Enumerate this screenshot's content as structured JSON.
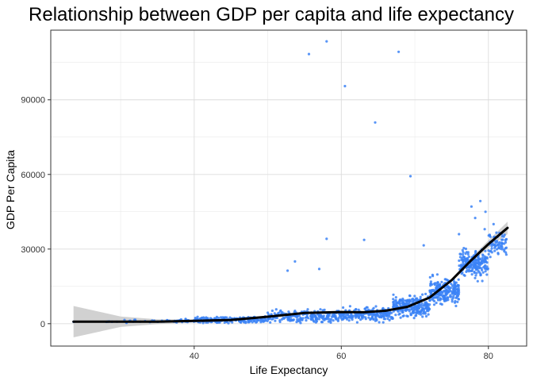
{
  "chart_data": {
    "type": "scatter",
    "title": "Relationship between GDP per capita and life expectancy",
    "xlabel": "Life Expectancy",
    "ylabel": "GDP Per Capita",
    "xlim": [
      20.5,
      85.2
    ],
    "ylim": [
      -9000,
      118000
    ],
    "x_ticks": [
      40,
      60,
      80
    ],
    "y_ticks": [
      0,
      30000,
      60000,
      90000
    ],
    "grid": true,
    "legend": "none",
    "colors": {
      "points": "#3b82f6",
      "smooth_line": "#000000",
      "confidence_band": "#cccccc",
      "grid": "#e6e6e6",
      "panel_border": "#333333"
    },
    "outliers": [
      {
        "x": 55.6,
        "y": 108400
      },
      {
        "x": 58.0,
        "y": 113500
      },
      {
        "x": 67.8,
        "y": 109300
      },
      {
        "x": 60.5,
        "y": 95500
      },
      {
        "x": 64.6,
        "y": 80900
      },
      {
        "x": 69.4,
        "y": 59300
      },
      {
        "x": 58.0,
        "y": 34100
      },
      {
        "x": 63.1,
        "y": 33700
      },
      {
        "x": 78.9,
        "y": 49300
      },
      {
        "x": 77.7,
        "y": 47100
      },
      {
        "x": 79.6,
        "y": 45000
      },
      {
        "x": 78.2,
        "y": 42500
      },
      {
        "x": 53.7,
        "y": 25000
      },
      {
        "x": 52.7,
        "y": 21300
      },
      {
        "x": 57.0,
        "y": 22000
      },
      {
        "x": 71.2,
        "y": 31500
      },
      {
        "x": 80.7,
        "y": 40000
      },
      {
        "x": 79.5,
        "y": 38000
      },
      {
        "x": 76.0,
        "y": 36000
      },
      {
        "x": 81.5,
        "y": 36500
      }
    ],
    "cluster_bands": [
      {
        "x_from": 23.6,
        "x_to": 30,
        "y_center": 800,
        "y_spread": 400,
        "count": 6
      },
      {
        "x_from": 30,
        "x_to": 40,
        "y_center": 1100,
        "y_spread": 900,
        "count": 55
      },
      {
        "x_from": 40,
        "x_to": 50,
        "y_center": 1500,
        "y_spread": 1800,
        "count": 190
      },
      {
        "x_from": 50,
        "x_to": 60,
        "y_center": 2800,
        "y_spread": 3500,
        "count": 230
      },
      {
        "x_from": 60,
        "x_to": 67,
        "y_center": 3800,
        "y_spread": 3800,
        "count": 210
      },
      {
        "x_from": 67,
        "x_to": 72,
        "y_center": 7000,
        "y_spread": 5500,
        "count": 250
      },
      {
        "x_from": 72,
        "x_to": 76,
        "y_center": 13000,
        "y_spread": 7500,
        "count": 230
      },
      {
        "x_from": 76,
        "x_to": 80,
        "y_center": 24000,
        "y_spread": 8000,
        "count": 200
      },
      {
        "x_from": 80,
        "x_to": 82.6,
        "y_center": 32000,
        "y_spread": 6000,
        "count": 70
      }
    ],
    "smooth_curve": {
      "x": [
        23.6,
        30,
        35,
        40,
        45,
        50,
        55,
        60,
        63,
        66,
        69,
        72,
        75,
        77.5,
        80,
        82.6
      ],
      "y": [
        800,
        800,
        800,
        1100,
        1500,
        2800,
        4300,
        4700,
        4600,
        5200,
        6800,
        10500,
        17500,
        25000,
        32000,
        38500
      ],
      "lower": [
        -5500,
        -1300,
        -200,
        600,
        1200,
        2400,
        3800,
        4200,
        4200,
        4800,
        6300,
        9900,
        16800,
        24000,
        30500,
        36000
      ],
      "upper": [
        7100,
        2900,
        1800,
        1600,
        1800,
        3200,
        4800,
        5200,
        5000,
        5600,
        7300,
        11100,
        18200,
        26000,
        33500,
        41000
      ]
    }
  }
}
